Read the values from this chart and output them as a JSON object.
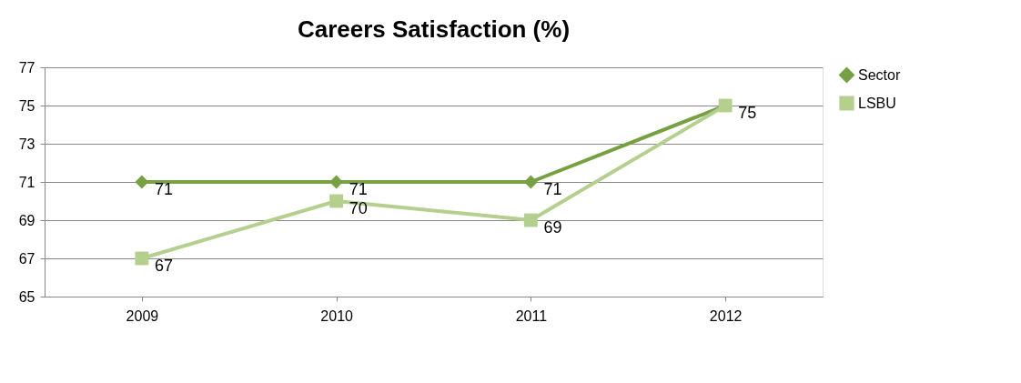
{
  "chart_data": {
    "type": "line",
    "title": "Careers Satisfaction (%)",
    "categories": [
      "2009",
      "2010",
      "2011",
      "2012"
    ],
    "series": [
      {
        "name": "Sector",
        "color": "#77a043",
        "marker": "diamond",
        "values": [
          71,
          71,
          71,
          75
        ],
        "value_labels": [
          "71",
          "71",
          "71",
          null
        ]
      },
      {
        "name": "LSBU",
        "color": "#b5cf8f",
        "marker": "square",
        "values": [
          67,
          70,
          69,
          75
        ],
        "value_labels": [
          "67",
          "70",
          "69",
          "75"
        ]
      }
    ],
    "ylim": [
      65,
      77
    ],
    "yticks": [
      65,
      67,
      69,
      71,
      73,
      75,
      77
    ],
    "grid": "y",
    "legend": "right",
    "line_style": "solid"
  }
}
